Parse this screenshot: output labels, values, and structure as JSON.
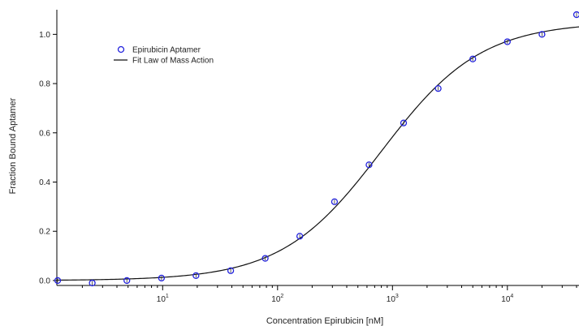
{
  "chart_data": {
    "type": "scatter",
    "xlabel": "Concentration Epirubicin [nM]",
    "ylabel": "Fraction Bound Aptamer",
    "x_scale": "log",
    "xlim": [
      1.2,
      42000
    ],
    "ylim": [
      -0.02,
      1.1
    ],
    "x_ticks": [
      {
        "value": 10,
        "base": "10",
        "exp": "1"
      },
      {
        "value": 100,
        "base": "10",
        "exp": "2"
      },
      {
        "value": 1000,
        "base": "10",
        "exp": "3"
      },
      {
        "value": 10000,
        "base": "10",
        "exp": "4"
      }
    ],
    "y_ticks": [
      "0.0",
      "0.2",
      "0.4",
      "0.6",
      "0.8",
      "1.0"
    ],
    "grid": false,
    "legend_position": "top-left",
    "series": [
      {
        "name": "Epirubicin Aptamer",
        "kind": "points",
        "color": "#2222dd",
        "x": [
          1.22,
          2.44,
          4.88,
          9.77,
          19.5,
          39.1,
          78.1,
          156,
          313,
          625,
          1250,
          2500,
          5000,
          10000,
          20000,
          40000
        ],
        "y": [
          0.0,
          -0.01,
          0.0,
          0.01,
          0.02,
          0.04,
          0.09,
          0.18,
          0.32,
          0.47,
          0.64,
          0.78,
          0.9,
          0.97,
          1.0,
          1.08
        ]
      },
      {
        "name": "Fit Law of Mass Action",
        "kind": "line",
        "color": "#111111",
        "model": {
          "Kd": 800,
          "ymax": 1.05
        }
      }
    ]
  }
}
